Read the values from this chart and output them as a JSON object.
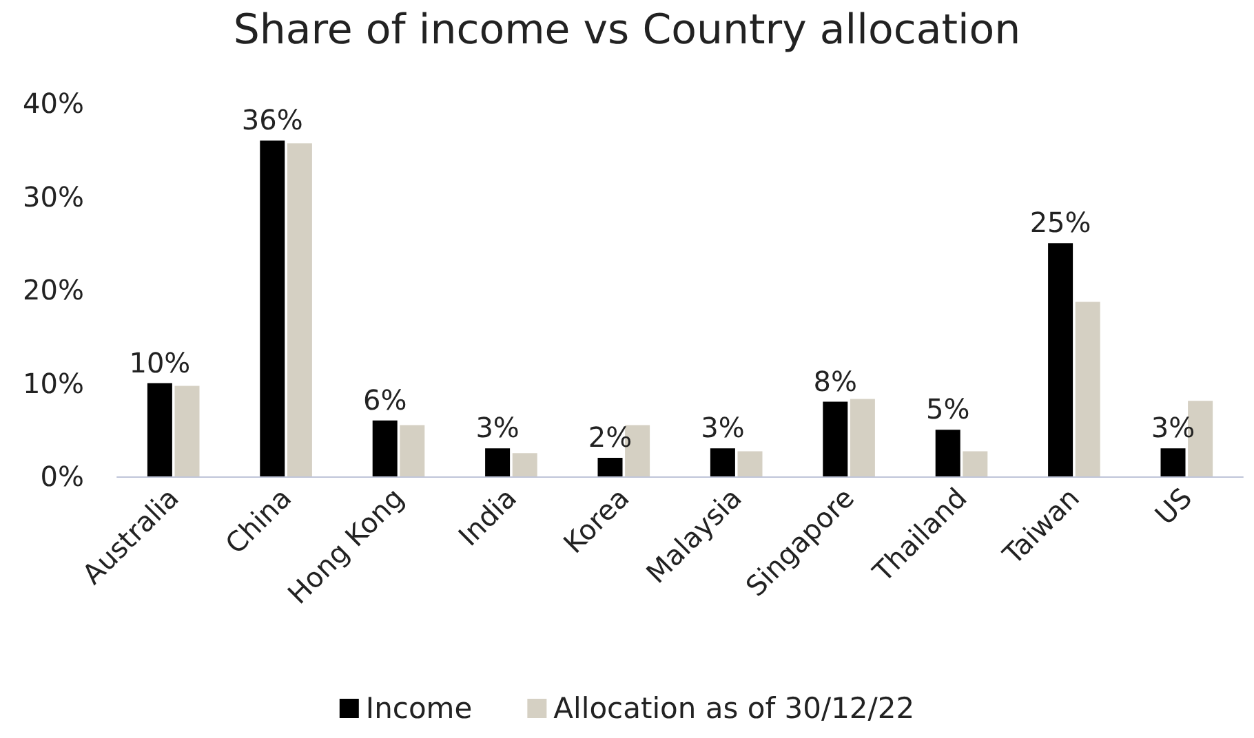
{
  "chart_data": {
    "type": "bar",
    "title": "Share of income vs Country allocation",
    "categories": [
      "Australia",
      "China",
      "Hong Kong",
      "India",
      "Korea",
      "Malaysia",
      "Singapore",
      "Thailand",
      "Taiwan",
      "US"
    ],
    "series": [
      {
        "name": "Income",
        "color": "#000000",
        "values": [
          10,
          36,
          6,
          3,
          2,
          3,
          8,
          5,
          25,
          3
        ],
        "value_labels": [
          "10%",
          "36%",
          "6%",
          "3%",
          "2%",
          "3%",
          "8%",
          "5%",
          "25%",
          "3%"
        ]
      },
      {
        "name": "Allocation as of 30/12/22",
        "color": "#d5d0c3",
        "values": [
          9.7,
          35.7,
          5.5,
          2.5,
          5.5,
          2.7,
          8.3,
          2.7,
          18.7,
          8.1
        ]
      }
    ],
    "ylim": [
      0,
      40
    ],
    "yticks": [
      {
        "value": 0,
        "label": "0%"
      },
      {
        "value": 10,
        "label": "10%"
      },
      {
        "value": 20,
        "label": "20%"
      },
      {
        "value": 30,
        "label": "30%"
      },
      {
        "value": 40,
        "label": "40%"
      }
    ],
    "grid": false,
    "legend": "bottom"
  }
}
